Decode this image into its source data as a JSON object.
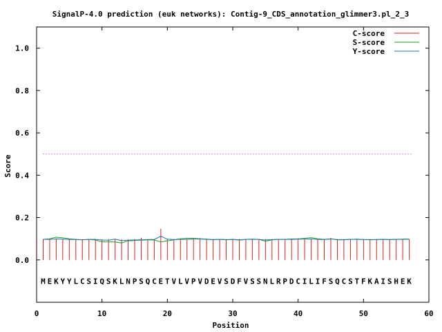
{
  "chart_data": {
    "type": "line",
    "title": "SignalP-4.0 prediction (euk networks): Contig-9_CDS_annotation_glimmer3.pl_2_3",
    "xlabel": "Position",
    "ylabel": "Score",
    "xlim": [
      0,
      60
    ],
    "ylim": [
      -0.2,
      1.1
    ],
    "xticks": [
      "0",
      "10",
      "20",
      "30",
      "40",
      "50",
      "60"
    ],
    "yticks": [
      "0.0",
      "0.2",
      "0.4",
      "0.6",
      "0.8",
      "1.0"
    ],
    "grid": false,
    "legend_position": "top-right",
    "threshold": 0.5,
    "sequence": [
      "M",
      "E",
      "K",
      "Y",
      "Y",
      "L",
      "C",
      "S",
      "I",
      "Q",
      "S",
      "K",
      "L",
      "N",
      "P",
      "S",
      "Q",
      "C",
      "E",
      "T",
      "V",
      "L",
      "V",
      "P",
      "V",
      "D",
      "E",
      "V",
      "S",
      "D",
      "F",
      "V",
      "S",
      "S",
      "N",
      "L",
      "R",
      "P",
      "D",
      "C",
      "I",
      "L",
      "I",
      "F",
      "S",
      "Q",
      "C",
      "S",
      "T",
      "F",
      "K",
      "A",
      "I",
      "S",
      "H",
      "E",
      "K"
    ],
    "positions": [
      1,
      2,
      3,
      4,
      5,
      6,
      7,
      8,
      9,
      10,
      11,
      12,
      13,
      14,
      15,
      16,
      17,
      18,
      19,
      20,
      21,
      22,
      23,
      24,
      25,
      26,
      27,
      28,
      29,
      30,
      31,
      32,
      33,
      34,
      35,
      36,
      37,
      38,
      39,
      40,
      41,
      42,
      43,
      44,
      45,
      46,
      47,
      48,
      49,
      50,
      51,
      52,
      53,
      54,
      55,
      56,
      57
    ],
    "series": [
      {
        "name": "C-score",
        "color": "#e41a1c",
        "style": "impulses",
        "values": [
          0.098,
          0.098,
          0.098,
          0.098,
          0.097,
          0.098,
          0.098,
          0.098,
          0.099,
          0.097,
          0.098,
          0.098,
          0.097,
          0.097,
          0.098,
          0.104,
          0.098,
          0.098,
          0.147,
          0.098,
          0.098,
          0.098,
          0.098,
          0.098,
          0.103,
          0.098,
          0.098,
          0.098,
          0.098,
          0.098,
          0.098,
          0.098,
          0.098,
          0.098,
          0.098,
          0.098,
          0.098,
          0.098,
          0.098,
          0.102,
          0.098,
          0.098,
          0.098,
          0.098,
          0.104,
          0.098,
          0.098,
          0.098,
          0.098,
          0.098,
          0.098,
          0.098,
          0.098,
          0.098,
          0.098,
          0.098,
          0.098
        ]
      },
      {
        "name": "S-score",
        "color": "#1a9e1a",
        "style": "line",
        "values": [
          0.097,
          0.1,
          0.107,
          0.104,
          0.1,
          0.097,
          0.095,
          0.097,
          0.094,
          0.085,
          0.085,
          0.085,
          0.08,
          0.09,
          0.092,
          0.093,
          0.095,
          0.094,
          0.085,
          0.09,
          0.095,
          0.1,
          0.102,
          0.102,
          0.1,
          0.098,
          0.095,
          0.097,
          0.095,
          0.097,
          0.093,
          0.097,
          0.098,
          0.097,
          0.088,
          0.095,
          0.097,
          0.097,
          0.099,
          0.099,
          0.102,
          0.105,
          0.1,
          0.097,
          0.1,
          0.095,
          0.095,
          0.097,
          0.098,
          0.096,
          0.095,
          0.096,
          0.097,
          0.096,
          0.097,
          0.098,
          0.099
        ]
      },
      {
        "name": "Y-score",
        "color": "#1a6faf",
        "style": "line",
        "values": [
          0.097,
          0.097,
          0.099,
          0.098,
          0.097,
          0.096,
          0.095,
          0.097,
          0.097,
          0.094,
          0.093,
          0.098,
          0.091,
          0.093,
          0.094,
          0.095,
          0.096,
          0.097,
          0.112,
          0.098,
          0.096,
          0.097,
          0.097,
          0.098,
          0.099,
          0.097,
          0.096,
          0.097,
          0.096,
          0.097,
          0.095,
          0.097,
          0.097,
          0.097,
          0.094,
          0.096,
          0.097,
          0.097,
          0.097,
          0.098,
          0.098,
          0.099,
          0.097,
          0.096,
          0.099,
          0.096,
          0.096,
          0.097,
          0.097,
          0.096,
          0.096,
          0.096,
          0.097,
          0.096,
          0.097,
          0.097,
          0.098
        ]
      }
    ]
  }
}
